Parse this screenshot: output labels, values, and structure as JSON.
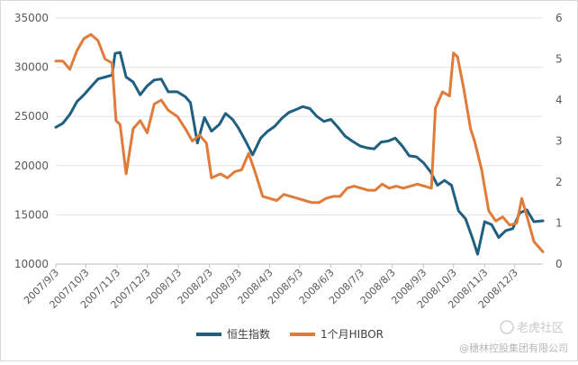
{
  "chart_data": {
    "type": "line",
    "x_labels": [
      "2007/9/3",
      "2007/10/3",
      "2007/11/3",
      "2007/12/3",
      "2008/1/3",
      "2008/2/3",
      "2008/3/3",
      "2008/4/3",
      "2008/5/3",
      "2008/6/3",
      "2008/7/3",
      "2008/8/3",
      "2008/9/3",
      "2008/10/3",
      "2008/11/3",
      "2008/12/3"
    ],
    "x_range": [
      "2007-09-03",
      "2008-12-31"
    ],
    "y_left": {
      "ylim": [
        10000,
        35000
      ],
      "ticks": [
        "10000",
        "15000",
        "20000",
        "25000",
        "30000",
        "35000"
      ]
    },
    "y_right": {
      "ylim": [
        0,
        6
      ],
      "ticks": [
        "0",
        "1",
        "2",
        "3",
        "4",
        "5",
        "6"
      ]
    },
    "grid": true,
    "legend_position": "bottom",
    "series": [
      {
        "name": "恒生指数",
        "axis": "left",
        "color": "#1f5f7f",
        "points": [
          [
            "2007-09-03",
            23900
          ],
          [
            "2007-09-10",
            24300
          ],
          [
            "2007-09-17",
            25200
          ],
          [
            "2007-09-24",
            26500
          ],
          [
            "2007-10-01",
            27200
          ],
          [
            "2007-10-08",
            28000
          ],
          [
            "2007-10-15",
            28800
          ],
          [
            "2007-10-22",
            29000
          ],
          [
            "2007-10-29",
            29200
          ],
          [
            "2007-11-01",
            31400
          ],
          [
            "2007-11-06",
            31500
          ],
          [
            "2007-11-12",
            29000
          ],
          [
            "2007-11-19",
            28500
          ],
          [
            "2007-11-26",
            27200
          ],
          [
            "2007-12-03",
            28100
          ],
          [
            "2007-12-10",
            28700
          ],
          [
            "2007-12-17",
            28800
          ],
          [
            "2007-12-24",
            27500
          ],
          [
            "2008-01-02",
            27500
          ],
          [
            "2008-01-10",
            27000
          ],
          [
            "2008-01-15",
            26400
          ],
          [
            "2008-01-22",
            22300
          ],
          [
            "2008-01-29",
            24900
          ],
          [
            "2008-02-05",
            23500
          ],
          [
            "2008-02-13",
            24200
          ],
          [
            "2008-02-19",
            25300
          ],
          [
            "2008-02-26",
            24700
          ],
          [
            "2008-03-03",
            23800
          ],
          [
            "2008-03-10",
            22500
          ],
          [
            "2008-03-17",
            21100
          ],
          [
            "2008-03-25",
            22800
          ],
          [
            "2008-04-01",
            23500
          ],
          [
            "2008-04-08",
            24000
          ],
          [
            "2008-04-15",
            24800
          ],
          [
            "2008-04-22",
            25400
          ],
          [
            "2008-04-29",
            25700
          ],
          [
            "2008-05-06",
            26000
          ],
          [
            "2008-05-13",
            25800
          ],
          [
            "2008-05-20",
            25000
          ],
          [
            "2008-05-27",
            24500
          ],
          [
            "2008-06-03",
            24700
          ],
          [
            "2008-06-10",
            23900
          ],
          [
            "2008-06-17",
            23000
          ],
          [
            "2008-06-24",
            22500
          ],
          [
            "2008-07-02",
            22000
          ],
          [
            "2008-07-09",
            21800
          ],
          [
            "2008-07-16",
            21700
          ],
          [
            "2008-07-23",
            22400
          ],
          [
            "2008-07-30",
            22500
          ],
          [
            "2008-08-06",
            22800
          ],
          [
            "2008-08-13",
            22000
          ],
          [
            "2008-08-20",
            21000
          ],
          [
            "2008-08-27",
            20900
          ],
          [
            "2008-09-03",
            20300
          ],
          [
            "2008-09-10",
            19400
          ],
          [
            "2008-09-17",
            18000
          ],
          [
            "2008-09-24",
            18500
          ],
          [
            "2008-10-01",
            18000
          ],
          [
            "2008-10-08",
            15400
          ],
          [
            "2008-10-15",
            14600
          ],
          [
            "2008-10-22",
            12600
          ],
          [
            "2008-10-27",
            11000
          ],
          [
            "2008-11-03",
            14300
          ],
          [
            "2008-11-10",
            14000
          ],
          [
            "2008-11-17",
            12700
          ],
          [
            "2008-11-24",
            13400
          ],
          [
            "2008-12-01",
            13600
          ],
          [
            "2008-12-08",
            15200
          ],
          [
            "2008-12-15",
            15500
          ],
          [
            "2008-12-22",
            14300
          ],
          [
            "2008-12-31",
            14400
          ]
        ]
      },
      {
        "name": "1个月HIBOR",
        "axis": "right",
        "color": "#e07b39",
        "points": [
          [
            "2007-09-03",
            4.95
          ],
          [
            "2007-09-10",
            4.95
          ],
          [
            "2007-09-17",
            4.75
          ],
          [
            "2007-09-24",
            5.2
          ],
          [
            "2007-10-01",
            5.5
          ],
          [
            "2007-10-08",
            5.6
          ],
          [
            "2007-10-15",
            5.45
          ],
          [
            "2007-10-22",
            5.0
          ],
          [
            "2007-10-29",
            4.9
          ],
          [
            "2007-11-02",
            3.5
          ],
          [
            "2007-11-06",
            3.4
          ],
          [
            "2007-11-12",
            2.2
          ],
          [
            "2007-11-19",
            3.3
          ],
          [
            "2007-11-26",
            3.5
          ],
          [
            "2007-12-03",
            3.2
          ],
          [
            "2007-12-10",
            3.9
          ],
          [
            "2007-12-17",
            4.0
          ],
          [
            "2007-12-24",
            3.75
          ],
          [
            "2008-01-02",
            3.6
          ],
          [
            "2008-01-10",
            3.3
          ],
          [
            "2008-01-17",
            3.0
          ],
          [
            "2008-01-24",
            3.15
          ],
          [
            "2008-01-31",
            2.95
          ],
          [
            "2008-02-05",
            2.1
          ],
          [
            "2008-02-14",
            2.2
          ],
          [
            "2008-02-21",
            2.1
          ],
          [
            "2008-02-28",
            2.25
          ],
          [
            "2008-03-06",
            2.3
          ],
          [
            "2008-03-13",
            2.7
          ],
          [
            "2008-03-20",
            2.2
          ],
          [
            "2008-03-27",
            1.65
          ],
          [
            "2008-04-03",
            1.6
          ],
          [
            "2008-04-10",
            1.55
          ],
          [
            "2008-04-17",
            1.7
          ],
          [
            "2008-04-24",
            1.65
          ],
          [
            "2008-05-01",
            1.6
          ],
          [
            "2008-05-08",
            1.55
          ],
          [
            "2008-05-15",
            1.5
          ],
          [
            "2008-05-22",
            1.5
          ],
          [
            "2008-05-29",
            1.6
          ],
          [
            "2008-06-05",
            1.65
          ],
          [
            "2008-06-12",
            1.65
          ],
          [
            "2008-06-19",
            1.85
          ],
          [
            "2008-06-26",
            1.9
          ],
          [
            "2008-07-03",
            1.85
          ],
          [
            "2008-07-10",
            1.8
          ],
          [
            "2008-07-17",
            1.8
          ],
          [
            "2008-07-24",
            1.95
          ],
          [
            "2008-07-31",
            1.85
          ],
          [
            "2008-08-07",
            1.9
          ],
          [
            "2008-08-14",
            1.85
          ],
          [
            "2008-08-21",
            1.9
          ],
          [
            "2008-08-28",
            1.95
          ],
          [
            "2008-09-04",
            1.9
          ],
          [
            "2008-09-11",
            1.85
          ],
          [
            "2008-09-15",
            3.8
          ],
          [
            "2008-09-22",
            4.2
          ],
          [
            "2008-09-29",
            4.1
          ],
          [
            "2008-10-03",
            5.15
          ],
          [
            "2008-10-07",
            5.05
          ],
          [
            "2008-10-13",
            4.3
          ],
          [
            "2008-10-20",
            3.3
          ],
          [
            "2008-10-24",
            3.0
          ],
          [
            "2008-10-31",
            2.3
          ],
          [
            "2008-11-07",
            1.3
          ],
          [
            "2008-11-14",
            1.05
          ],
          [
            "2008-11-21",
            1.15
          ],
          [
            "2008-11-28",
            0.95
          ],
          [
            "2008-12-05",
            1.0
          ],
          [
            "2008-12-10",
            1.6
          ],
          [
            "2008-12-17",
            1.0
          ],
          [
            "2008-12-22",
            0.55
          ],
          [
            "2008-12-31",
            0.3
          ]
        ]
      }
    ]
  },
  "watermark": {
    "brand": "老虎社区",
    "author": "@穗林控股集团有限公司"
  }
}
